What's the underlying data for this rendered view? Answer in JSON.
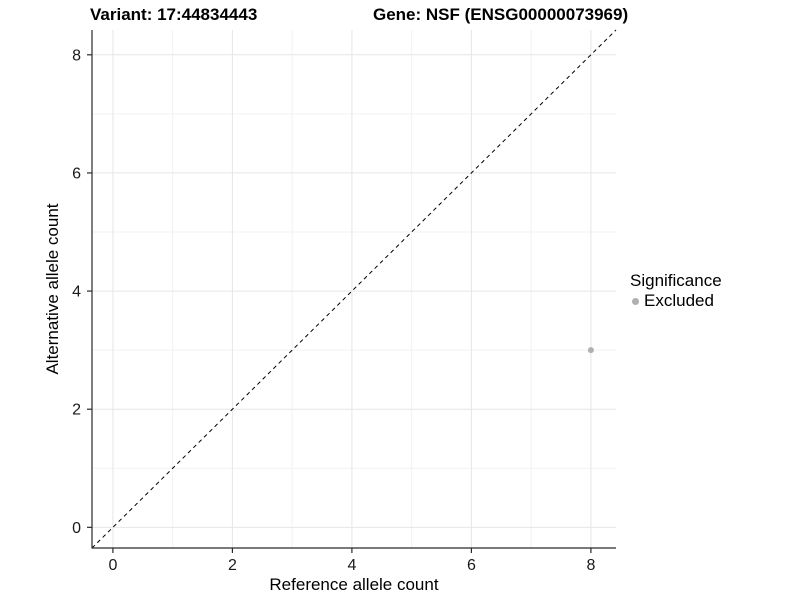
{
  "chart_data": {
    "type": "scatter",
    "titles": {
      "left": "Variant: 17:44834443",
      "right": "Gene: NSF (ENSG00000073969)"
    },
    "xlabel": "Reference allele count",
    "ylabel": "Alternative allele count",
    "xlim": [
      -0.35,
      8.42
    ],
    "ylim": [
      -0.35,
      8.42
    ],
    "xticks": [
      0,
      2,
      4,
      6,
      8
    ],
    "yticks": [
      0,
      2,
      4,
      6,
      8
    ],
    "x_minor_ticks": [
      1,
      3,
      5,
      7
    ],
    "y_minor_ticks": [
      1,
      3,
      5,
      7
    ],
    "grid": "on",
    "identity_line": {
      "slope": 1,
      "intercept": 0,
      "style": "dashed"
    },
    "points": [
      {
        "x": 8,
        "y": 3,
        "series": "Excluded"
      }
    ],
    "legend": {
      "title": "Significance",
      "position": "right",
      "items": [
        {
          "label": "Excluded",
          "color": "#b0b0b0"
        }
      ]
    },
    "colors": {
      "point": "#b0b0b0",
      "grid_major": "#e6e6e6",
      "grid_minor": "#f2f2f2",
      "axis_line": "#2a2a2a",
      "tick_label": "#1a1a1a",
      "identity_line": "#000000"
    }
  }
}
